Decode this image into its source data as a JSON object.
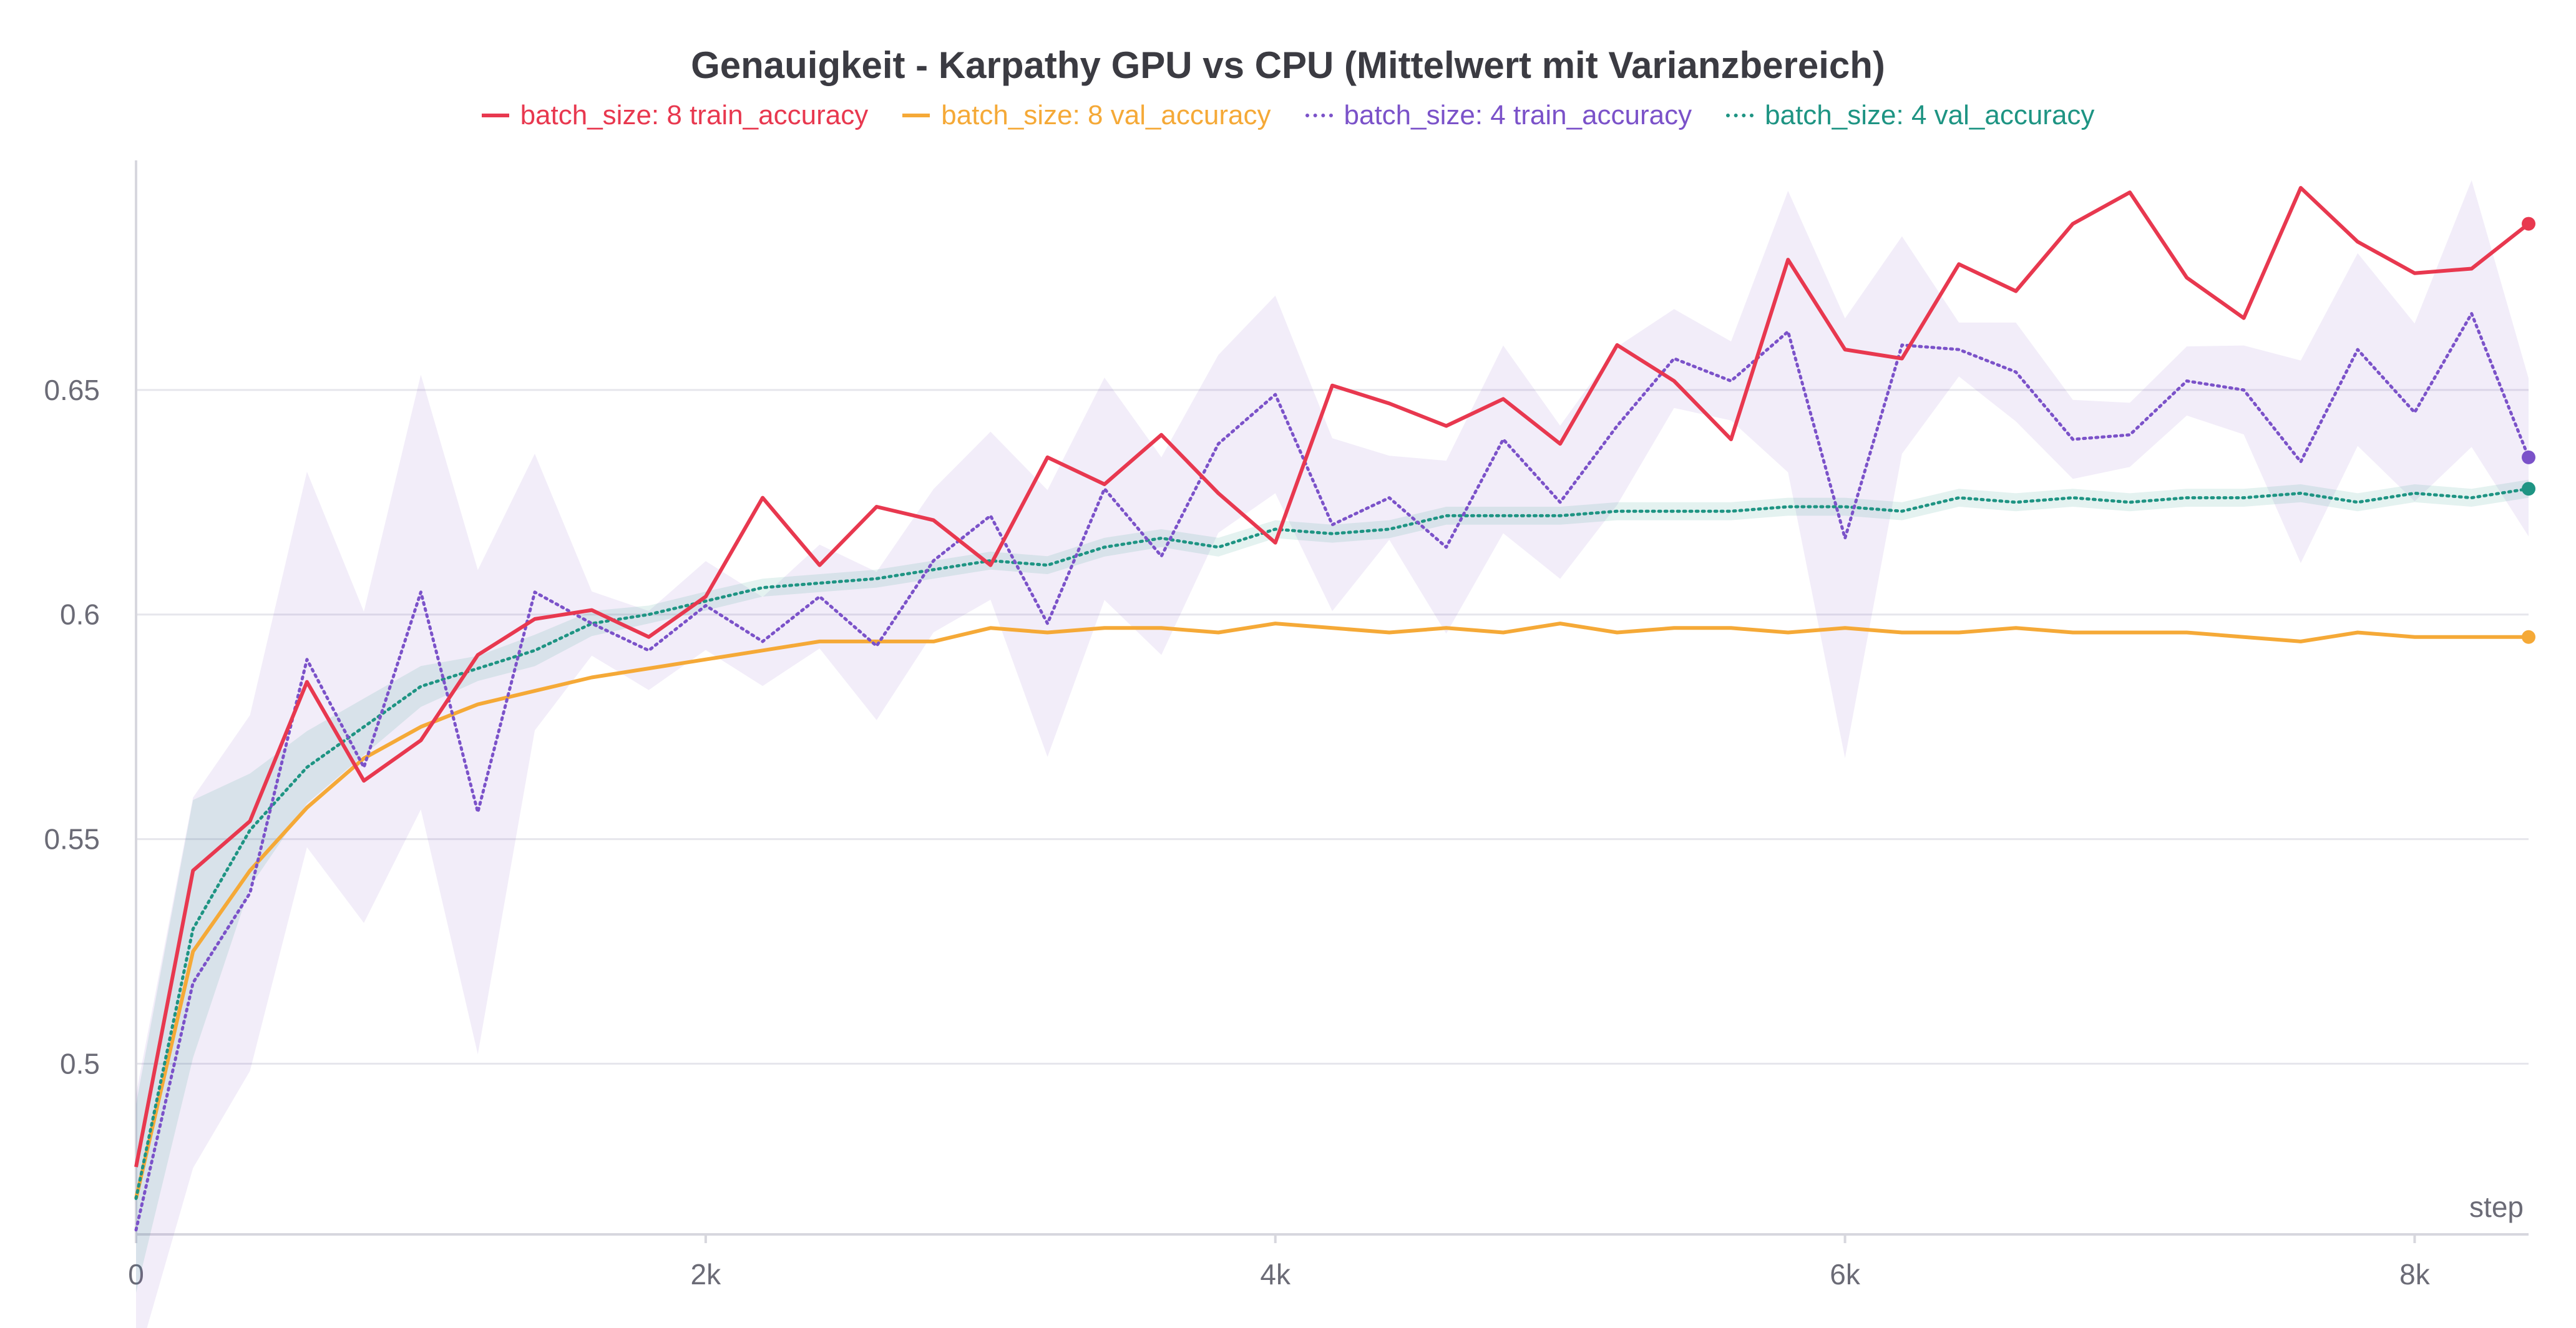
{
  "chart_data": {
    "type": "line",
    "title": "Genauigkeit - Karpathy GPU vs CPU (Mittelwert mit Varianzbereich)",
    "xlabel": "step",
    "ylabel": "",
    "xlim": [
      0,
      8400
    ],
    "ylim": [
      0.462,
      0.7
    ],
    "grid": true,
    "legend_position": "top-center",
    "x_ticks": [
      {
        "value": 0,
        "label": "0"
      },
      {
        "value": 2000,
        "label": "2k"
      },
      {
        "value": 4000,
        "label": "4k"
      },
      {
        "value": 6000,
        "label": "6k"
      },
      {
        "value": 8000,
        "label": "8k"
      }
    ],
    "y_ticks": [
      {
        "value": 0.5,
        "label": "0.5"
      },
      {
        "value": 0.55,
        "label": "0.55"
      },
      {
        "value": 0.6,
        "label": "0.6"
      },
      {
        "value": 0.65,
        "label": "0.65"
      }
    ],
    "x": [
      0,
      200,
      400,
      600,
      800,
      1000,
      1200,
      1400,
      1600,
      1800,
      2000,
      2200,
      2400,
      2600,
      2800,
      3000,
      3200,
      3400,
      3600,
      3800,
      4000,
      4200,
      4400,
      4600,
      4800,
      5000,
      5200,
      5400,
      5600,
      5800,
      6000,
      6200,
      6400,
      6600,
      6800,
      7000,
      7200,
      7400,
      7600,
      7800,
      8000,
      8200,
      8400
    ],
    "series": [
      {
        "name": "batch_size: 8 train_accuracy",
        "color": "#e8384f",
        "style": "solid",
        "values": [
          0.477,
          0.543,
          0.554,
          0.585,
          0.563,
          0.572,
          0.591,
          0.599,
          0.601,
          0.595,
          0.604,
          0.626,
          0.611,
          0.624,
          0.621,
          0.611,
          0.635,
          0.629,
          0.64,
          0.627,
          0.616,
          0.651,
          0.647,
          0.642,
          0.648,
          0.638,
          0.66,
          0.652,
          0.639,
          0.679,
          0.659,
          0.657,
          0.678,
          0.672,
          0.687,
          0.694,
          0.675,
          0.666,
          0.695,
          0.683,
          0.676,
          0.677,
          0.687
        ]
      },
      {
        "name": "batch_size: 8 val_accuracy",
        "color": "#f5a937",
        "style": "solid",
        "values": [
          0.47,
          0.525,
          0.543,
          0.557,
          0.568,
          0.575,
          0.58,
          0.583,
          0.586,
          0.588,
          0.59,
          0.592,
          0.594,
          0.594,
          0.594,
          0.597,
          0.596,
          0.597,
          0.597,
          0.596,
          0.598,
          0.597,
          0.596,
          0.597,
          0.596,
          0.598,
          0.596,
          0.597,
          0.597,
          0.596,
          0.597,
          0.596,
          0.596,
          0.597,
          0.596,
          0.596,
          0.596,
          0.595,
          0.594,
          0.596,
          0.595,
          0.595,
          0.595
        ]
      },
      {
        "name": "batch_size: 4 train_accuracy",
        "color": "#7b52c9",
        "style": "dotted",
        "values": [
          0.463,
          0.518,
          0.538,
          0.59,
          0.566,
          0.605,
          0.556,
          0.605,
          0.598,
          0.592,
          0.602,
          0.594,
          0.604,
          0.593,
          0.612,
          0.622,
          0.598,
          0.628,
          0.613,
          0.638,
          0.649,
          0.62,
          0.626,
          0.615,
          0.639,
          0.625,
          0.642,
          0.657,
          0.652,
          0.663,
          0.617,
          0.66,
          0.659,
          0.654,
          0.639,
          0.64,
          0.652,
          0.65,
          0.634,
          0.659,
          0.645,
          0.667,
          0.635
        ]
      },
      {
        "name": "batch_size: 4 val_accuracy",
        "color": "#1e9483",
        "style": "dotted",
        "values": [
          0.47,
          0.53,
          0.552,
          0.566,
          0.575,
          0.584,
          0.588,
          0.592,
          0.598,
          0.6,
          0.603,
          0.606,
          0.607,
          0.608,
          0.61,
          0.612,
          0.611,
          0.615,
          0.617,
          0.615,
          0.619,
          0.618,
          0.619,
          0.622,
          0.622,
          0.622,
          0.623,
          0.623,
          0.623,
          0.624,
          0.624,
          0.623,
          0.626,
          0.625,
          0.626,
          0.625,
          0.626,
          0.626,
          0.627,
          0.625,
          0.627,
          0.626,
          0.628
        ]
      }
    ]
  }
}
